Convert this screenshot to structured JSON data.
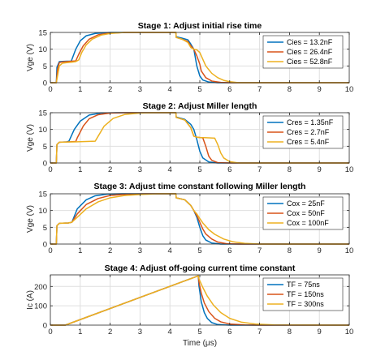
{
  "colors": {
    "series1": "#0072BD",
    "series2": "#D95319",
    "series3": "#EDB120",
    "grid": "#dfdfdf",
    "axis": "#262626"
  },
  "chart_data": [
    {
      "type": "line",
      "title": "Stage 1: Adjust initial rise time",
      "xlabel": "",
      "ylabel": "Vge (V)",
      "xlim": [
        0,
        10
      ],
      "ylim": [
        0,
        15
      ],
      "xticks": [
        "0",
        "1",
        "2",
        "3",
        "4",
        "5",
        "6",
        "7",
        "8",
        "9",
        "10"
      ],
      "yticks": [
        "0",
        "5",
        "10",
        "15"
      ],
      "grid": true,
      "legend": "top-right",
      "series": [
        {
          "name": "Cies = 13.2nF",
          "x": [
            0,
            0.2,
            0.22,
            0.3,
            0.4,
            0.55,
            0.7,
            0.85,
            1.0,
            1.2,
            1.5,
            2.0,
            2.5,
            3.0,
            3.5,
            4.2,
            4.21,
            4.4,
            4.6,
            4.7,
            4.8,
            4.85,
            4.9,
            5.0,
            5.1,
            5.3,
            5.6,
            6.0,
            7.0,
            10.0
          ],
          "y": [
            0,
            0,
            4.6,
            6.3,
            6.35,
            6.4,
            6.45,
            10.0,
            12.5,
            14.0,
            14.7,
            15.0,
            15.0,
            15.0,
            15.0,
            15.0,
            13.7,
            13.3,
            12.8,
            11.5,
            10.0,
            7.5,
            5.0,
            2.0,
            0.8,
            0.2,
            0,
            0,
            0,
            0
          ]
        },
        {
          "name": "Cies = 26.4nF",
          "x": [
            0,
            0.2,
            0.24,
            0.3,
            0.4,
            0.55,
            0.7,
            0.85,
            0.95,
            1.1,
            1.3,
            1.6,
            2.0,
            2.5,
            3.0,
            3.5,
            4.2,
            4.21,
            4.4,
            4.6,
            4.7,
            4.8,
            4.9,
            5.0,
            5.05,
            5.2,
            5.4,
            5.7,
            6.0,
            7.0,
            10.0
          ],
          "y": [
            0,
            0,
            4.0,
            6.0,
            6.2,
            6.3,
            6.4,
            6.5,
            8.5,
            11.0,
            13.0,
            14.3,
            14.8,
            15.0,
            15.0,
            15.0,
            15.0,
            13.5,
            13.0,
            12.3,
            11.0,
            10.0,
            8.0,
            5.5,
            3.5,
            1.5,
            0.5,
            0.1,
            0,
            0,
            0
          ]
        },
        {
          "name": "Cies = 52.8nF",
          "x": [
            0,
            0.2,
            0.25,
            0.3,
            0.4,
            0.55,
            0.7,
            0.85,
            0.95,
            1.05,
            1.2,
            1.4,
            1.7,
            2.0,
            2.5,
            3.0,
            3.5,
            4.2,
            4.21,
            4.4,
            4.6,
            4.7,
            4.8,
            4.9,
            5.0,
            5.1,
            5.2,
            5.4,
            5.6,
            5.8,
            6.0,
            6.3,
            7.0,
            10.0
          ],
          "y": [
            0,
            0,
            2.5,
            5.0,
            5.8,
            6.0,
            6.1,
            6.3,
            6.8,
            9.0,
            11.3,
            13.0,
            14.2,
            14.7,
            15.0,
            15.0,
            15.0,
            15.0,
            13.5,
            13.0,
            12.0,
            10.5,
            10.0,
            9.8,
            9.0,
            7.0,
            5.0,
            2.8,
            1.5,
            0.7,
            0.3,
            0,
            0,
            0
          ]
        }
      ]
    },
    {
      "type": "line",
      "title": "Stage 2: Adjust Miller length",
      "xlabel": "",
      "ylabel": "Vge (V)",
      "xlim": [
        0,
        10
      ],
      "ylim": [
        0,
        15
      ],
      "xticks": [
        "0",
        "1",
        "2",
        "3",
        "4",
        "5",
        "6",
        "7",
        "8",
        "9",
        "10"
      ],
      "yticks": [
        "0",
        "5",
        "10",
        "15"
      ],
      "grid": true,
      "legend": "top-right",
      "series": [
        {
          "name": "Cres = 1.35nF",
          "x": [
            0,
            0.2,
            0.22,
            0.3,
            0.55,
            0.62,
            0.8,
            1.0,
            1.3,
            1.7,
            2.2,
            3.0,
            4.2,
            4.21,
            4.5,
            4.7,
            4.8,
            4.9,
            5.0,
            5.1,
            5.3,
            5.6,
            6.0,
            10.0
          ],
          "y": [
            0,
            0,
            5.5,
            6.2,
            6.3,
            6.5,
            10.0,
            12.5,
            14.3,
            14.9,
            15.0,
            15.0,
            15.0,
            13.7,
            13.0,
            11.5,
            10.0,
            7.0,
            3.5,
            1.5,
            0.3,
            0,
            0,
            0
          ]
        },
        {
          "name": "Cres = 2.7nF",
          "x": [
            0,
            0.2,
            0.22,
            0.3,
            0.6,
            0.85,
            0.9,
            1.1,
            1.3,
            1.6,
            2.0,
            2.5,
            3.0,
            4.2,
            4.21,
            4.5,
            4.7,
            4.8,
            4.9,
            5.0,
            5.1,
            5.2,
            5.3,
            5.4,
            5.6,
            6.0,
            10.0
          ],
          "y": [
            0,
            0,
            5.5,
            6.2,
            6.3,
            6.4,
            7.5,
            11.0,
            13.2,
            14.4,
            14.9,
            15.0,
            15.0,
            15.0,
            13.6,
            12.8,
            10.5,
            8.0,
            7.7,
            7.6,
            7.5,
            5.0,
            2.0,
            0.8,
            0.1,
            0,
            0
          ]
        },
        {
          "name": "Cres = 5.4nF",
          "x": [
            0,
            0.2,
            0.22,
            0.3,
            0.8,
            1.2,
            1.5,
            1.6,
            1.8,
            2.1,
            2.5,
            3.0,
            3.5,
            4.2,
            4.21,
            4.5,
            4.7,
            4.8,
            4.9,
            5.0,
            5.3,
            5.5,
            5.6,
            5.7,
            5.8,
            6.0,
            6.3,
            7.0,
            10.0
          ],
          "y": [
            0,
            0,
            5.5,
            6.2,
            6.3,
            6.4,
            6.5,
            8.0,
            11.0,
            13.3,
            14.5,
            14.9,
            15.0,
            15.0,
            13.6,
            12.8,
            10.5,
            8.0,
            7.7,
            7.6,
            7.5,
            7.4,
            5.5,
            3.0,
            1.5,
            0.4,
            0,
            0,
            0
          ]
        }
      ]
    },
    {
      "type": "line",
      "title": "Stage 3: Adjust time constant following Miller length",
      "xlabel": "",
      "ylabel": "Vge (V)",
      "xlim": [
        0,
        10
      ],
      "ylim": [
        0,
        15
      ],
      "xticks": [
        "0",
        "1",
        "2",
        "3",
        "4",
        "5",
        "6",
        "7",
        "8",
        "9",
        "10"
      ],
      "yticks": [
        "0",
        "5",
        "10",
        "15"
      ],
      "grid": true,
      "legend": "top-right",
      "series": [
        {
          "name": "Cox = 25nF",
          "x": [
            0,
            0.2,
            0.22,
            0.3,
            0.6,
            0.72,
            0.9,
            1.2,
            1.5,
            1.9,
            2.4,
            3.0,
            4.2,
            4.21,
            4.5,
            4.7,
            4.8,
            4.9,
            5.0,
            5.1,
            5.2,
            5.4,
            5.7,
            6.0,
            10.0
          ],
          "y": [
            0,
            0,
            5.5,
            6.2,
            6.3,
            6.5,
            10.5,
            13.2,
            14.4,
            14.9,
            15.0,
            15.0,
            15.0,
            13.8,
            13.2,
            11.5,
            10.0,
            8.0,
            5.0,
            2.5,
            1.2,
            0.3,
            0,
            0,
            0
          ]
        },
        {
          "name": "Cox = 50nF",
          "x": [
            0,
            0.2,
            0.22,
            0.3,
            0.6,
            0.72,
            0.9,
            1.2,
            1.6,
            2.0,
            2.6,
            3.2,
            4.2,
            4.21,
            4.5,
            4.7,
            4.8,
            4.9,
            5.0,
            5.1,
            5.2,
            5.4,
            5.6,
            5.9,
            6.3,
            10.0
          ],
          "y": [
            0,
            0,
            5.5,
            6.2,
            6.3,
            6.5,
            9.0,
            11.8,
            13.6,
            14.5,
            14.9,
            15.0,
            15.0,
            13.8,
            13.2,
            11.5,
            10.0,
            8.5,
            6.5,
            4.5,
            3.0,
            1.5,
            0.6,
            0.1,
            0,
            0
          ]
        },
        {
          "name": "Cox = 100nF",
          "x": [
            0,
            0.2,
            0.22,
            0.3,
            0.6,
            0.72,
            0.9,
            1.2,
            1.6,
            2.0,
            2.5,
            3.0,
            3.6,
            4.2,
            4.21,
            4.5,
            4.7,
            4.8,
            4.9,
            5.0,
            5.1,
            5.3,
            5.5,
            5.8,
            6.1,
            6.5,
            7.0,
            10.0
          ],
          "y": [
            0,
            0,
            5.5,
            6.2,
            6.3,
            6.5,
            8.0,
            10.5,
            12.6,
            13.8,
            14.5,
            14.8,
            15.0,
            15.0,
            13.8,
            13.2,
            11.5,
            10.0,
            9.0,
            7.6,
            6.3,
            4.3,
            2.9,
            1.5,
            0.7,
            0.2,
            0,
            0
          ]
        }
      ]
    },
    {
      "type": "line",
      "title": "Stage 4: Adjust off-going current time constant",
      "xlabel": "Time (μs)",
      "ylabel": "Ic (A)",
      "xlim": [
        0,
        10
      ],
      "ylim": [
        0,
        260
      ],
      "xticks": [
        "0",
        "1",
        "2",
        "3",
        "4",
        "5",
        "6",
        "7",
        "8",
        "9",
        "10"
      ],
      "yticks": [
        "0",
        "100",
        "200"
      ],
      "grid": true,
      "legend": "top-right",
      "series": [
        {
          "name": "TF = 75ns",
          "x": [
            0,
            0.5,
            4.95,
            4.97,
            5.05,
            5.15,
            5.25,
            5.4,
            5.6,
            6.0,
            7.0,
            10.0
          ],
          "y": [
            0,
            0,
            255,
            205,
            120,
            65,
            35,
            13,
            3,
            0,
            0,
            0
          ]
        },
        {
          "name": "TF = 150ns",
          "x": [
            0,
            0.5,
            4.95,
            4.97,
            5.05,
            5.15,
            5.3,
            5.5,
            5.7,
            6.0,
            6.5,
            7.0,
            10.0
          ],
          "y": [
            0,
            0,
            255,
            225,
            165,
            115,
            70,
            35,
            17,
            6,
            1,
            0,
            0
          ]
        },
        {
          "name": "TF = 300ns",
          "x": [
            0,
            0.5,
            4.95,
            4.97,
            5.1,
            5.25,
            5.45,
            5.7,
            6.0,
            6.4,
            6.9,
            7.5,
            10.0
          ],
          "y": [
            0,
            0,
            255,
            240,
            195,
            150,
            105,
            65,
            35,
            15,
            5,
            1,
            0
          ]
        }
      ]
    }
  ]
}
